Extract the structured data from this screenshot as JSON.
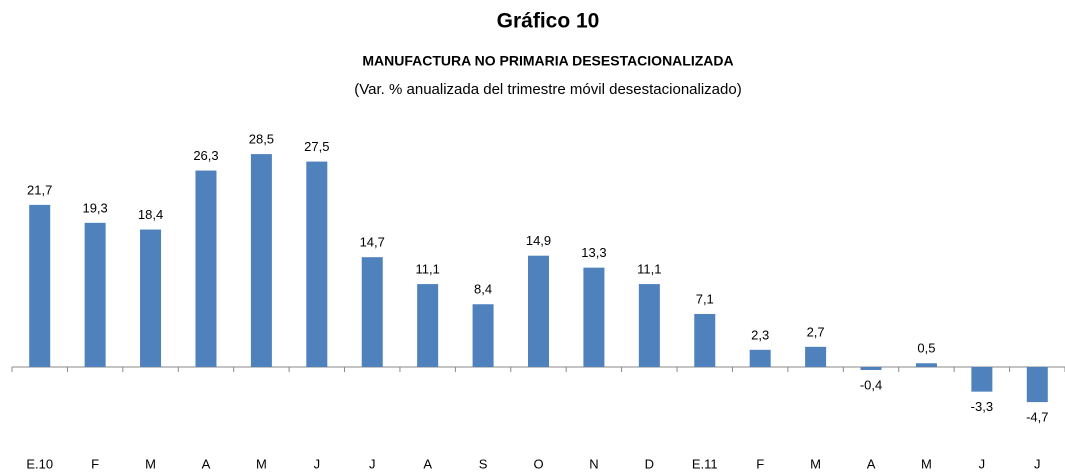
{
  "chart_data": {
    "type": "bar",
    "title": "Gráfico 10",
    "subtitle": "MANUFACTURA NO PRIMARIA DESESTACIONALIZADA",
    "note": "(Var. % anualizada del trimestre móvil desestacionalizado)",
    "categories": [
      "E.10",
      "F",
      "M",
      "A",
      "M",
      "J",
      "J",
      "A",
      "S",
      "O",
      "N",
      "D",
      "E.11",
      "F",
      "M",
      "A",
      "M",
      "J",
      "J"
    ],
    "values": [
      21.7,
      19.3,
      18.4,
      26.3,
      28.5,
      27.5,
      14.7,
      11.1,
      8.4,
      14.9,
      13.3,
      11.1,
      7.1,
      2.3,
      2.7,
      -0.4,
      0.5,
      -3.3,
      -4.7
    ],
    "value_labels": [
      "21,7",
      "19,3",
      "18,4",
      "26,3",
      "28,5",
      "27,5",
      "14,7",
      "11,1",
      "8,4",
      "14,9",
      "13,3",
      "11,1",
      "7,1",
      "2,3",
      "2,7",
      "-0,4",
      "0,5",
      "-3,3",
      "-4,7"
    ],
    "color": "#4f81bd"
  }
}
